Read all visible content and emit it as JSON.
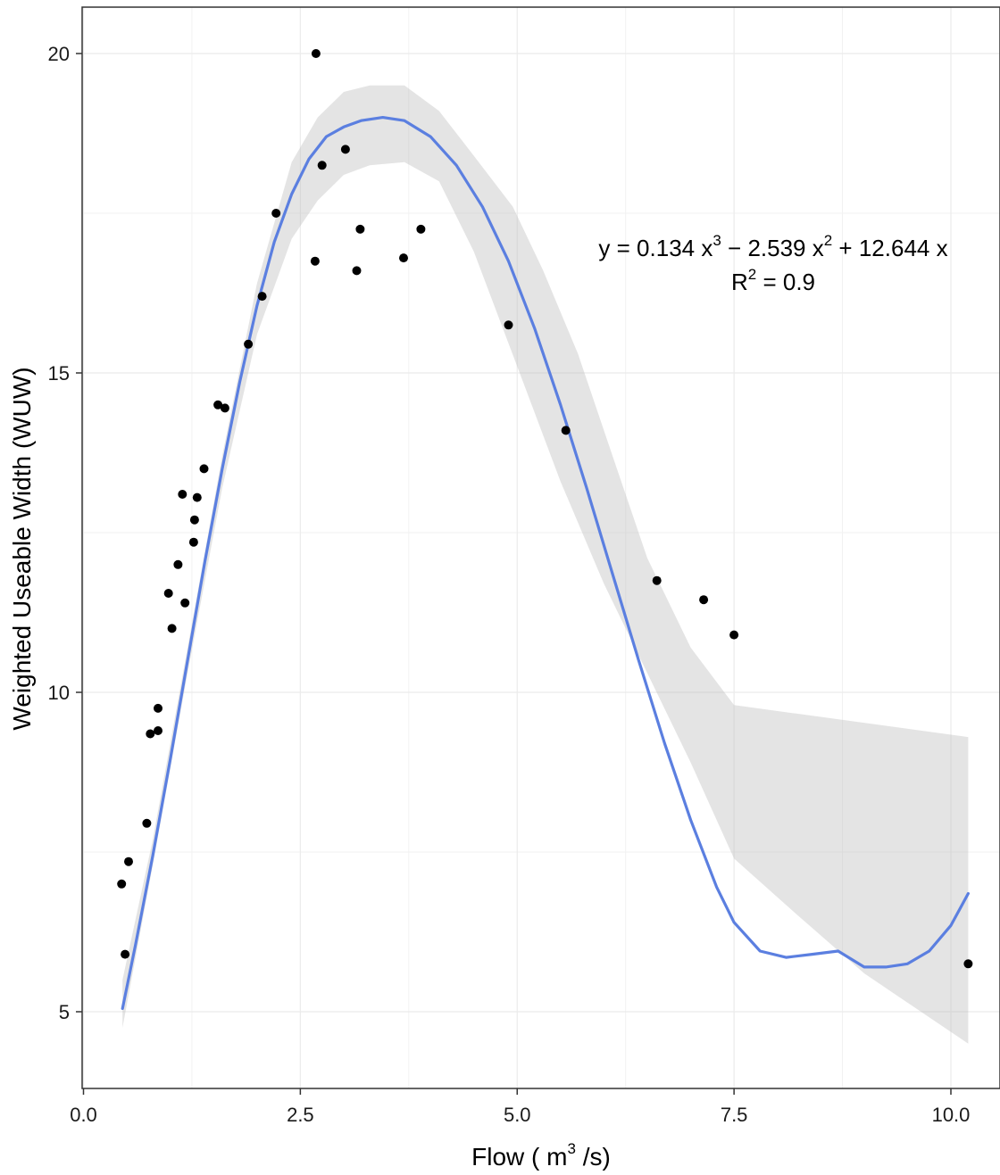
{
  "chart_data": {
    "type": "scatter",
    "xlabel": {
      "prefix": "Flow ( m",
      "sup": "3",
      "suffix": " /s)"
    },
    "ylabel": "Weighted Useable Width (WUW)",
    "xlim": [
      0.0,
      10.35
    ],
    "ylim": [
      4.0,
      21.0
    ],
    "x_ticks": [
      0.0,
      2.5,
      5.0,
      7.5,
      10.0
    ],
    "x_tick_labels": [
      "0.0",
      "2.5",
      "5.0",
      "7.5",
      "10.0"
    ],
    "y_ticks": [
      5,
      10,
      15,
      20
    ],
    "y_tick_labels": [
      "5",
      "10",
      "15",
      "20"
    ],
    "grid": true,
    "annotation": {
      "line1_parts": [
        "y = ",
        "0.134 x",
        "3",
        " − 2.539 x",
        "2",
        " + ",
        "12.644 x"
      ],
      "line2_parts": [
        "R",
        "2",
        " = 0.9"
      ]
    },
    "series": [
      {
        "type": "points",
        "color": "#000000",
        "points": [
          [
            0.44,
            7.0
          ],
          [
            0.48,
            5.9
          ],
          [
            0.52,
            7.35
          ],
          [
            0.73,
            7.95
          ],
          [
            0.77,
            9.35
          ],
          [
            0.86,
            9.4
          ],
          [
            0.86,
            9.75
          ],
          [
            0.98,
            11.55
          ],
          [
            1.02,
            11.0
          ],
          [
            1.09,
            12.0
          ],
          [
            1.14,
            13.1
          ],
          [
            1.17,
            11.4
          ],
          [
            1.27,
            12.35
          ],
          [
            1.28,
            12.7
          ],
          [
            1.31,
            13.05
          ],
          [
            1.39,
            13.5
          ],
          [
            1.55,
            14.5
          ],
          [
            1.63,
            14.45
          ],
          [
            1.9,
            15.45
          ],
          [
            2.06,
            16.2
          ],
          [
            2.22,
            17.5
          ],
          [
            2.67,
            16.75
          ],
          [
            2.68,
            20.0
          ],
          [
            2.75,
            18.25
          ],
          [
            3.02,
            18.5
          ],
          [
            3.15,
            16.6
          ],
          [
            3.19,
            17.25
          ],
          [
            3.69,
            16.8
          ],
          [
            3.89,
            17.25
          ],
          [
            4.9,
            15.75
          ],
          [
            5.56,
            14.1
          ],
          [
            6.61,
            11.75
          ],
          [
            7.15,
            11.45
          ],
          [
            7.5,
            10.9
          ],
          [
            10.2,
            5.75
          ]
        ]
      },
      {
        "type": "smooth",
        "color": "#5b7fe0",
        "band_color": "#bfbfbf",
        "fit": [
          [
            0.45,
            5.05
          ],
          [
            0.6,
            6.05
          ],
          [
            0.8,
            7.45
          ],
          [
            1.0,
            8.95
          ],
          [
            1.2,
            10.5
          ],
          [
            1.4,
            12.05
          ],
          [
            1.6,
            13.5
          ],
          [
            1.8,
            14.85
          ],
          [
            2.0,
            16.05
          ],
          [
            2.2,
            17.05
          ],
          [
            2.4,
            17.8
          ],
          [
            2.6,
            18.35
          ],
          [
            2.8,
            18.7
          ],
          [
            3.0,
            18.85
          ],
          [
            3.2,
            18.95
          ],
          [
            3.45,
            19.0
          ],
          [
            3.7,
            18.95
          ],
          [
            4.0,
            18.7
          ],
          [
            4.3,
            18.25
          ],
          [
            4.6,
            17.6
          ],
          [
            4.9,
            16.75
          ],
          [
            5.2,
            15.7
          ],
          [
            5.5,
            14.5
          ],
          [
            5.8,
            13.2
          ],
          [
            6.1,
            11.85
          ],
          [
            6.4,
            10.5
          ],
          [
            6.7,
            9.2
          ],
          [
            7.0,
            8.0
          ],
          [
            7.3,
            6.95
          ],
          [
            7.5,
            6.4
          ],
          [
            7.8,
            5.95
          ],
          [
            8.1,
            5.85
          ],
          [
            8.4,
            5.9
          ],
          [
            8.7,
            5.95
          ],
          [
            9.0,
            5.7
          ],
          [
            9.25,
            5.7
          ],
          [
            9.5,
            5.75
          ],
          [
            9.75,
            5.95
          ],
          [
            10.0,
            6.35
          ],
          [
            10.2,
            6.85
          ]
        ],
        "upper": [
          [
            0.45,
            5.5
          ],
          [
            0.8,
            7.7
          ],
          [
            1.2,
            10.7
          ],
          [
            1.6,
            13.7
          ],
          [
            2.0,
            16.4
          ],
          [
            2.4,
            18.3
          ],
          [
            2.7,
            19.0
          ],
          [
            3.0,
            19.4
          ],
          [
            3.3,
            19.5
          ],
          [
            3.7,
            19.5
          ],
          [
            4.1,
            19.1
          ],
          [
            4.5,
            18.4
          ],
          [
            4.95,
            17.6
          ],
          [
            5.3,
            16.6
          ],
          [
            5.7,
            15.3
          ],
          [
            6.1,
            13.7
          ],
          [
            6.5,
            12.1
          ],
          [
            7.0,
            10.7
          ],
          [
            7.5,
            9.8
          ],
          [
            10.2,
            9.3
          ]
        ],
        "lower": [
          [
            10.2,
            4.5
          ],
          [
            9.0,
            5.6
          ],
          [
            8.2,
            6.55
          ],
          [
            7.5,
            7.4
          ],
          [
            7.0,
            8.9
          ],
          [
            6.5,
            10.3
          ],
          [
            6.0,
            11.7
          ],
          [
            5.5,
            13.3
          ],
          [
            5.0,
            15.1
          ],
          [
            4.5,
            16.9
          ],
          [
            4.1,
            18.0
          ],
          [
            3.7,
            18.3
          ],
          [
            3.3,
            18.25
          ],
          [
            3.0,
            18.1
          ],
          [
            2.7,
            17.7
          ],
          [
            2.4,
            17.1
          ],
          [
            2.0,
            15.6
          ],
          [
            1.6,
            13.2
          ],
          [
            1.2,
            10.3
          ],
          [
            0.8,
            7.3
          ],
          [
            0.45,
            4.75
          ]
        ]
      }
    ]
  }
}
